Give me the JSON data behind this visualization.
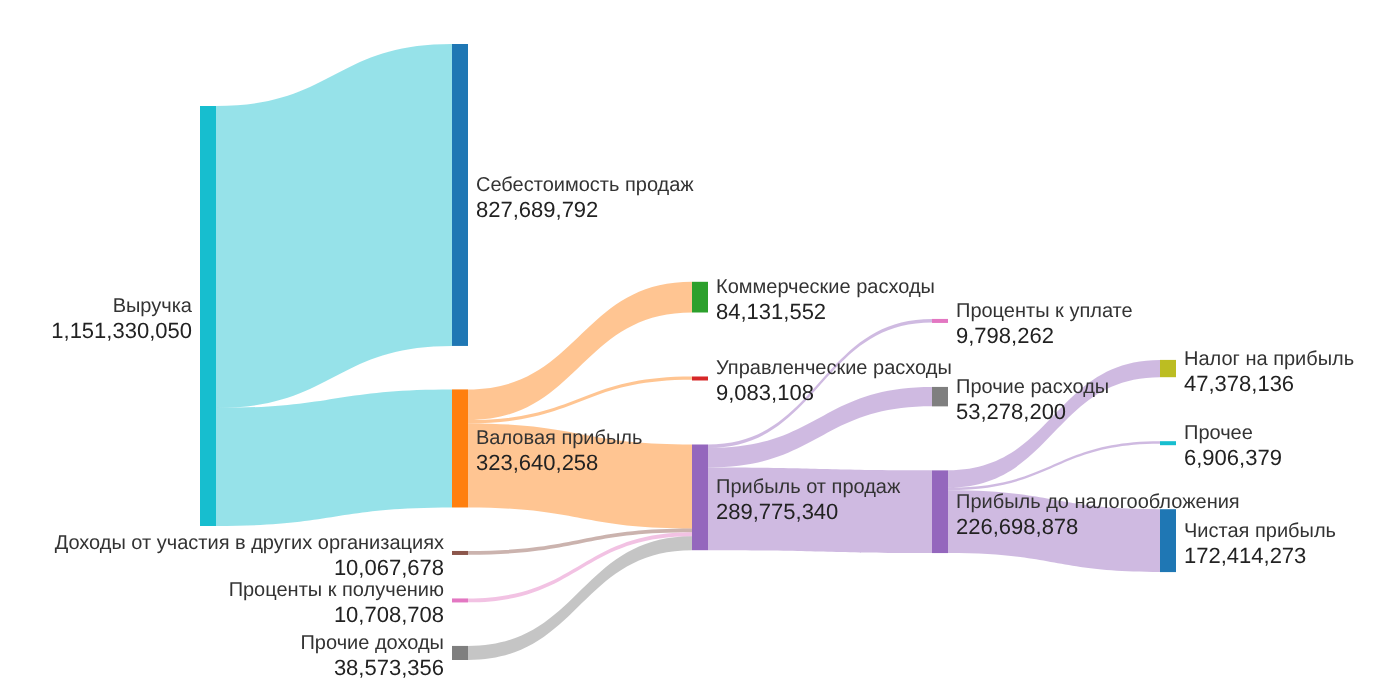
{
  "chart_data": {
    "type": "other",
    "categories": [
      "Выручка",
      "Себестоимость продаж",
      "Валовая прибыль",
      "Доходы от участия в других организациях",
      "Проценты к получению",
      "Прочие доходы",
      "Коммерческие расходы",
      "Управленческие расходы",
      "Прибыль от продаж",
      "Проценты к уплате",
      "Прочие расходы",
      "Прибыль до налогообложения",
      "Налог на прибыль",
      "Прочее",
      "Чистая прибыль"
    ],
    "values": [
      1151330050,
      827689792,
      323640258,
      10067678,
      10708708,
      38573356,
      84131552,
      9083108,
      289775340,
      9798262,
      53278200,
      226698878,
      47378136,
      6906379,
      172414273
    ],
    "value_labels": [
      "1,151,330,050",
      "827,689,792",
      "323,640,258",
      "10,067,678",
      "10,708,708",
      "38,573,356",
      "84,131,552",
      "9,083,108",
      "289,775,340",
      "9,798,262",
      "53,278,200",
      "226,698,878",
      "47,378,136",
      "6,906,379",
      "172,414,273"
    ],
    "colors": [
      "#17becf",
      "#1f77b4",
      "#ff7f0e",
      "#8c564b",
      "#e377c2",
      "#7f7f7f",
      "#2ca02c",
      "#d62728",
      "#9467bd",
      "#e377c2",
      "#7f7f7f",
      "#9467bd",
      "#bcbd22",
      "#17becf",
      "#1f77b4"
    ]
  }
}
